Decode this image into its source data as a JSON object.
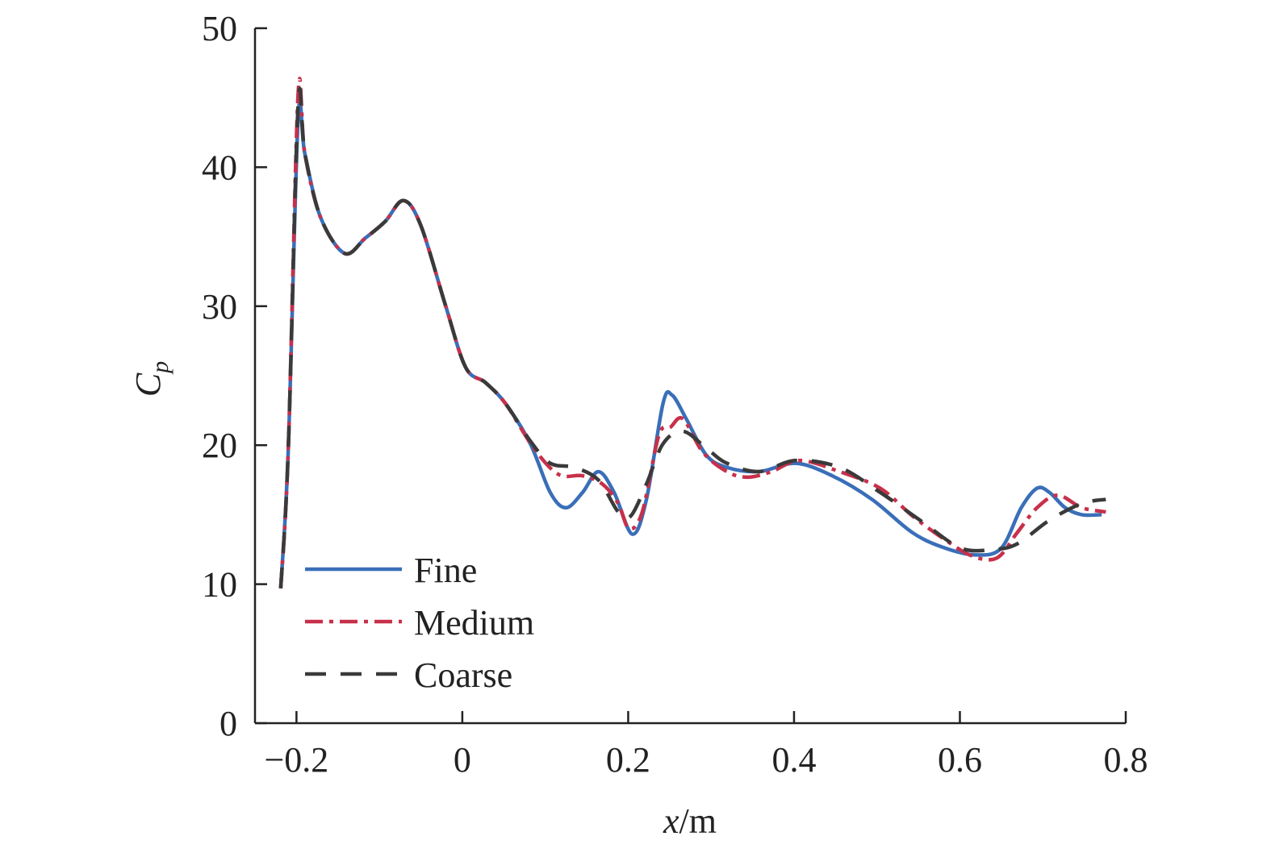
{
  "chart_data": {
    "type": "line",
    "title": "",
    "xlabel_italic": "x",
    "xlabel_unit": "/m",
    "ylabel_main": "C",
    "ylabel_sub": "p",
    "xlim": [
      -0.25,
      0.8
    ],
    "ylim": [
      0,
      50
    ],
    "xticks": [
      -0.2,
      0,
      0.2,
      0.4,
      0.6,
      0.8
    ],
    "xtick_labels": [
      "−0.2",
      "0",
      "0.2",
      "0.4",
      "0.6",
      "0.8"
    ],
    "yticks": [
      0,
      10,
      20,
      30,
      40,
      50
    ],
    "ytick_labels": [
      "0",
      "10",
      "20",
      "30",
      "40",
      "50"
    ],
    "grid": false,
    "legend_position": "bottom-left",
    "series": [
      {
        "name": "Fine",
        "color": "#3a6fb8",
        "style": "solid",
        "x": [
          -0.219,
          -0.21,
          -0.198,
          -0.19,
          -0.171,
          -0.142,
          -0.117,
          -0.093,
          -0.071,
          -0.05,
          -0.02,
          0.004,
          0.028,
          0.052,
          0.082,
          0.106,
          0.125,
          0.145,
          0.164,
          0.183,
          0.205,
          0.222,
          0.242,
          0.253,
          0.27,
          0.294,
          0.319,
          0.358,
          0.402,
          0.446,
          0.494,
          0.543,
          0.582,
          0.62,
          0.65,
          0.674,
          0.693,
          0.708,
          0.727,
          0.747,
          0.771
        ],
        "y": [
          9.7,
          19.5,
          43.5,
          41,
          36.4,
          33.8,
          34.9,
          36.1,
          37.6,
          35.8,
          30,
          25.6,
          24.5,
          23,
          20.1,
          16.6,
          15.5,
          16.6,
          18.1,
          16.6,
          13.6,
          16.1,
          23,
          23.6,
          21.9,
          19.3,
          18.4,
          18.1,
          18.7,
          17.8,
          16.1,
          13.7,
          12.6,
          12.1,
          12.6,
          15.5,
          16.9,
          16.6,
          15.5,
          15,
          15
        ]
      },
      {
        "name": "Medium",
        "color": "#c8304a",
        "style": "dashdot",
        "x": [
          -0.219,
          -0.21,
          -0.198,
          -0.19,
          -0.171,
          -0.142,
          -0.117,
          -0.093,
          -0.071,
          -0.05,
          -0.02,
          0.004,
          0.028,
          0.052,
          0.086,
          0.116,
          0.145,
          0.169,
          0.188,
          0.201,
          0.217,
          0.237,
          0.251,
          0.266,
          0.29,
          0.319,
          0.344,
          0.373,
          0.407,
          0.455,
          0.504,
          0.543,
          0.582,
          0.616,
          0.645,
          0.669,
          0.693,
          0.718,
          0.747,
          0.776
        ],
        "y": [
          9.7,
          19.5,
          45.3,
          41,
          36.4,
          33.8,
          34.9,
          36.1,
          37.6,
          35.8,
          30,
          25.6,
          24.5,
          23,
          19.8,
          17.9,
          17.8,
          17.2,
          15.8,
          14,
          15.2,
          20.7,
          21.3,
          21.9,
          19.5,
          18.1,
          17.7,
          18.1,
          18.9,
          18.1,
          16.9,
          14.9,
          13.2,
          12,
          11.9,
          13.7,
          15.5,
          16.4,
          15.5,
          15.2
        ]
      },
      {
        "name": "Coarse",
        "color": "#3a3a3a",
        "style": "dashed",
        "x": [
          -0.219,
          -0.21,
          -0.198,
          -0.19,
          -0.171,
          -0.142,
          -0.117,
          -0.093,
          -0.071,
          -0.05,
          -0.02,
          0.004,
          0.028,
          0.052,
          0.082,
          0.106,
          0.135,
          0.164,
          0.188,
          0.203,
          0.222,
          0.242,
          0.266,
          0.294,
          0.319,
          0.358,
          0.402,
          0.455,
          0.504,
          0.552,
          0.601,
          0.64,
          0.669,
          0.708,
          0.747,
          0.776
        ],
        "y": [
          9.7,
          19.5,
          44.5,
          41,
          36.4,
          33.8,
          34.9,
          36.1,
          37.6,
          35.8,
          30,
          25.6,
          24.5,
          23,
          20.3,
          18.7,
          18.4,
          17.5,
          15.2,
          14.9,
          17.2,
          20.1,
          21,
          19.8,
          18.7,
          18.1,
          18.9,
          18.4,
          16.6,
          14.6,
          12.6,
          12.5,
          12.9,
          14.6,
          15.8,
          16.1
        ]
      }
    ]
  }
}
